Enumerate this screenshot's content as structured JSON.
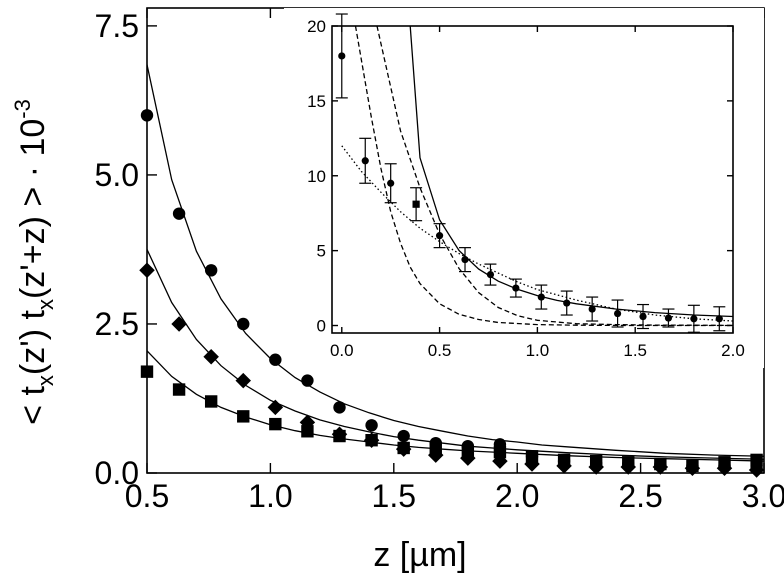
{
  "chart_data": [
    {
      "type": "scatter",
      "title": "",
      "xlabel": "z [µm]",
      "ylabel": "< t",
      "ylabel_sub1": "x",
      "ylabel_mid": "(z') t",
      "ylabel_sub2": "x",
      "ylabel_end": "(z'+z) > · 10",
      "ylabel_sup": "-3",
      "xlim": [
        0.5,
        3.0
      ],
      "ylim": [
        0.0,
        7.8
      ],
      "xticks": [
        "0.5",
        "1.0",
        "1.5",
        "2.0",
        "2.5",
        "3.0"
      ],
      "xtick_values": [
        0.5,
        1.0,
        1.5,
        2.0,
        2.5,
        3.0
      ],
      "yticks": [
        "0.0",
        "2.5",
        "5.0",
        "7.5"
      ],
      "ytick_values": [
        0.0,
        2.5,
        5.0,
        7.5
      ],
      "series": [
        {
          "marker": "circle",
          "x": [
            0.5,
            0.63,
            0.76,
            0.89,
            1.02,
            1.15,
            1.28,
            1.41,
            1.54,
            1.67,
            1.8,
            1.93,
            2.06,
            2.19,
            2.32,
            2.45,
            2.58,
            2.71,
            2.84,
            2.97
          ],
          "y": [
            6.0,
            4.35,
            3.4,
            2.5,
            1.9,
            1.55,
            1.1,
            0.8,
            0.62,
            0.5,
            0.45,
            0.48,
            0.28,
            0.2,
            0.16,
            0.15,
            0.14,
            0.12,
            0.12,
            0.1
          ]
        },
        {
          "marker": "diamond",
          "x": [
            0.5,
            0.63,
            0.76,
            0.89,
            1.02,
            1.15,
            1.28,
            1.41,
            1.54,
            1.67,
            1.8,
            1.93,
            2.06,
            2.19,
            2.32,
            2.45,
            2.58,
            2.71,
            2.84,
            2.97
          ],
          "y": [
            3.4,
            2.5,
            1.95,
            1.55,
            1.1,
            0.85,
            0.65,
            0.55,
            0.4,
            0.3,
            0.25,
            0.2,
            0.15,
            0.12,
            0.1,
            0.1,
            0.1,
            0.08,
            0.08,
            0.05
          ]
        },
        {
          "marker": "square",
          "x": [
            0.5,
            0.63,
            0.76,
            0.89,
            1.02,
            1.15,
            1.28,
            1.41,
            1.54,
            1.67,
            1.8,
            1.93,
            2.06,
            2.19,
            2.32,
            2.45,
            2.58,
            2.71,
            2.84,
            2.97
          ],
          "y": [
            1.7,
            1.4,
            1.2,
            0.95,
            0.82,
            0.7,
            0.62,
            0.55,
            0.42,
            0.42,
            0.35,
            0.35,
            0.28,
            0.22,
            0.2,
            0.18,
            0.15,
            0.12,
            0.18,
            0.22
          ]
        },
        {
          "style": "solid-line",
          "x": [
            0.5,
            0.6,
            0.7,
            0.8,
            0.9,
            1.0,
            1.1,
            1.2,
            1.3,
            1.4,
            1.5,
            1.6,
            1.7,
            1.8,
            1.9,
            2.0,
            2.1,
            2.2,
            2.4,
            2.6,
            2.8,
            3.0
          ],
          "y": [
            6.85,
            4.92,
            3.72,
            2.92,
            2.34,
            1.92,
            1.6,
            1.36,
            1.16,
            1.01,
            0.88,
            0.78,
            0.7,
            0.62,
            0.56,
            0.52,
            0.47,
            0.44,
            0.38,
            0.33,
            0.3,
            0.28
          ]
        },
        {
          "style": "solid-line",
          "x": [
            0.5,
            0.6,
            0.7,
            0.8,
            0.9,
            1.0,
            1.1,
            1.2,
            1.3,
            1.4,
            1.5,
            1.6,
            1.7,
            1.8,
            1.9,
            2.0,
            2.2,
            2.4,
            2.6,
            2.8,
            3.0
          ],
          "y": [
            3.75,
            2.86,
            2.24,
            1.8,
            1.47,
            1.22,
            1.04,
            0.89,
            0.78,
            0.69,
            0.61,
            0.55,
            0.5,
            0.45,
            0.42,
            0.39,
            0.34,
            0.3,
            0.27,
            0.25,
            0.23
          ]
        },
        {
          "style": "solid-line",
          "x": [
            0.5,
            0.6,
            0.7,
            0.8,
            0.9,
            1.0,
            1.1,
            1.2,
            1.3,
            1.4,
            1.5,
            1.6,
            1.7,
            1.8,
            2.0,
            2.2,
            2.4,
            2.6,
            2.8,
            3.0
          ],
          "y": [
            2.05,
            1.62,
            1.32,
            1.1,
            0.94,
            0.81,
            0.71,
            0.63,
            0.57,
            0.52,
            0.47,
            0.43,
            0.4,
            0.37,
            0.33,
            0.29,
            0.26,
            0.24,
            0.22,
            0.2
          ]
        }
      ]
    },
    {
      "type": "scatter",
      "title": "",
      "xlabel": "",
      "ylabel": "",
      "xlim": [
        -0.05,
        2.0
      ],
      "ylim": [
        -0.5,
        20.0
      ],
      "xticks": [
        "0.0",
        "0.5",
        "1.0",
        "1.5",
        "2.0"
      ],
      "xtick_values": [
        0.0,
        0.5,
        1.0,
        1.5,
        2.0
      ],
      "yticks": [
        "0",
        "5",
        "10",
        "15",
        "20"
      ],
      "ytick_values": [
        0,
        5,
        10,
        15,
        20
      ],
      "series": [
        {
          "marker": "circle",
          "x": [
            0.0,
            0.12,
            0.25,
            0.5,
            0.63,
            0.76,
            0.89,
            1.02,
            1.15,
            1.28,
            1.41,
            1.54,
            1.67,
            1.8,
            1.93
          ],
          "y": [
            18.0,
            11.0,
            9.5,
            6.0,
            4.4,
            3.4,
            2.5,
            1.9,
            1.5,
            1.1,
            0.8,
            0.6,
            0.5,
            0.45,
            0.45
          ],
          "yerr": [
            2.8,
            1.5,
            1.3,
            0.8,
            0.8,
            0.7,
            0.6,
            0.8,
            0.8,
            0.8,
            0.9,
            0.8,
            0.6,
            0.9,
            0.8
          ]
        },
        {
          "marker": "square",
          "x": [
            0.38
          ],
          "y": [
            8.1
          ],
          "yerr": [
            1.1
          ]
        },
        {
          "style": "solid-line",
          "x": [
            0.35,
            0.4,
            0.5,
            0.6,
            0.7,
            0.8,
            0.9,
            1.0,
            1.1,
            1.2,
            1.4,
            1.6,
            1.8,
            2.0
          ],
          "y": [
            20.0,
            11.2,
            7.05,
            5.0,
            3.77,
            2.96,
            2.41,
            2.0,
            1.68,
            1.45,
            1.1,
            0.86,
            0.7,
            0.6
          ]
        },
        {
          "style": "dotted-line",
          "x": [
            0.0,
            0.1,
            0.2,
            0.3,
            0.4,
            0.5,
            0.6,
            0.7,
            0.8,
            0.9,
            1.0,
            1.2,
            1.4,
            1.6,
            1.8,
            2.0
          ],
          "y": [
            12.0,
            10.3,
            8.9,
            7.6,
            6.5,
            5.6,
            4.8,
            4.1,
            3.5,
            2.9,
            2.4,
            1.7,
            1.1,
            0.7,
            0.45,
            0.3
          ]
        },
        {
          "style": "dashed-line",
          "x": [
            0.18,
            0.3,
            0.4,
            0.5,
            0.6,
            0.7,
            0.8,
            0.9,
            1.0,
            1.2,
            1.4,
            1.6,
            1.8,
            2.0
          ],
          "y": [
            20.0,
            13.0,
            9.2,
            6.1,
            3.8,
            2.2,
            1.2,
            0.65,
            0.35,
            0.12,
            0.06,
            0.03,
            0.02,
            0.01
          ]
        },
        {
          "style": "dashed-line",
          "x": [
            0.07,
            0.15,
            0.2,
            0.25,
            0.3,
            0.35,
            0.4,
            0.5,
            0.6,
            0.7,
            0.8,
            1.0,
            1.2,
            1.5,
            2.0
          ],
          "y": [
            20.0,
            14.0,
            10.5,
            7.6,
            5.5,
            3.9,
            2.8,
            1.45,
            0.75,
            0.4,
            0.2,
            0.06,
            0.02,
            0.0,
            0.0
          ]
        }
      ]
    }
  ]
}
